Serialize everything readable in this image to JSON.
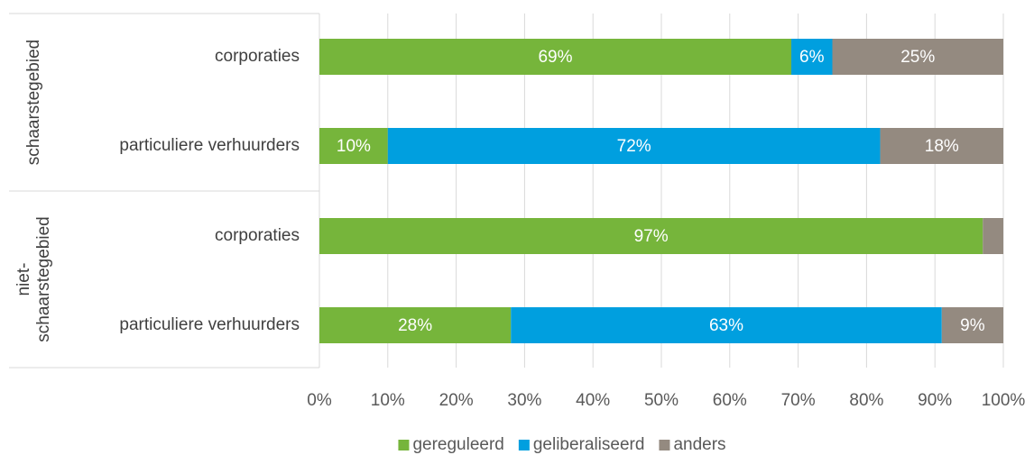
{
  "chart_data": {
    "type": "bar",
    "orientation": "horizontal",
    "stacked": "percent",
    "groups": [
      {
        "label_lines": [
          "schaarstegebied"
        ],
        "categories": [
          "corporaties",
          "particuliere verhuurders"
        ]
      },
      {
        "label_lines": [
          "niet-",
          "schaarstegebied"
        ],
        "categories": [
          "corporaties",
          "particuliere verhuurders"
        ]
      }
    ],
    "series": [
      {
        "name": "gereguleerd",
        "color": "#76B53B",
        "values": [
          69,
          10,
          97,
          28
        ],
        "labels": [
          "69%",
          "10%",
          "97%",
          "28%"
        ]
      },
      {
        "name": "geliberaliseerd",
        "color": "#009FDF",
        "values": [
          6,
          72,
          0,
          63
        ],
        "labels": [
          "6%",
          "72%",
          "",
          "63%"
        ]
      },
      {
        "name": "anders",
        "color": "#948A80",
        "values": [
          25,
          18,
          3,
          9
        ],
        "labels": [
          "25%",
          "18%",
          "",
          "9%"
        ]
      }
    ],
    "x_ticks": [
      "0%",
      "10%",
      "20%",
      "30%",
      "40%",
      "50%",
      "60%",
      "70%",
      "80%",
      "90%",
      "100%"
    ],
    "xlim": [
      0,
      100
    ],
    "grid": "vertical",
    "legend_position": "bottom"
  }
}
